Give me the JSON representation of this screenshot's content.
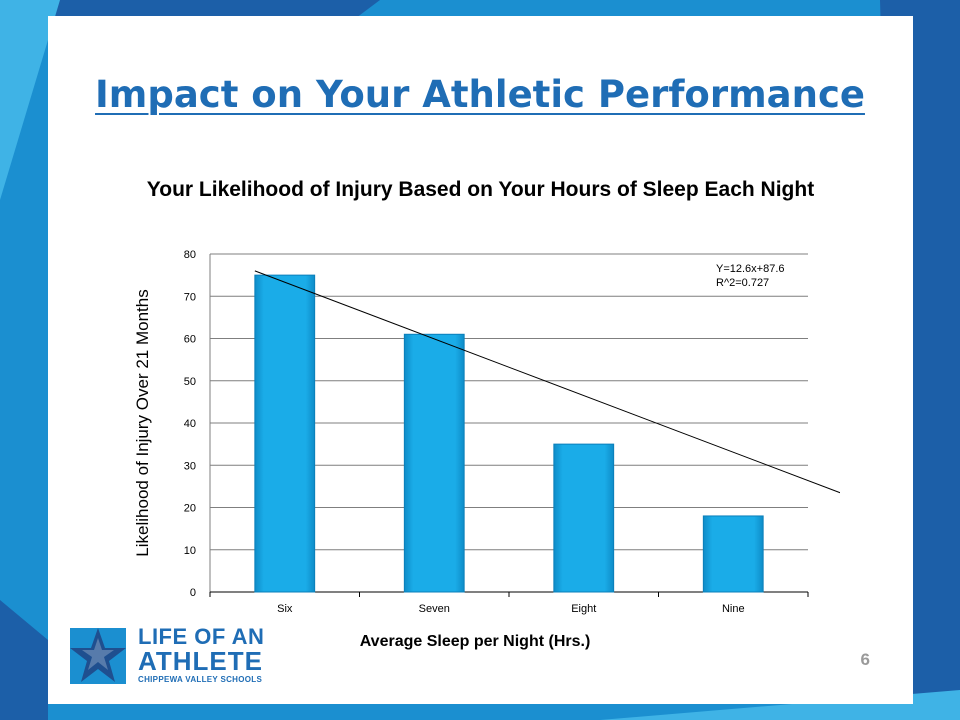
{
  "slide": {
    "title": "Impact on Your Athletic Performance",
    "subtitle": "Your Likelihood of Injury Based on Your Hours of Sleep Each Night",
    "page_number": "6",
    "logo": {
      "line1": "LIFE OF AN",
      "line2": "ATHLETE",
      "line3": "CHIPPEWA VALLEY SCHOOLS",
      "icon": "star-icon"
    }
  },
  "colors": {
    "background": "#1b8fd0",
    "background_dark": "#1c5fa8",
    "background_light": "#3fb3e6",
    "bar": "#1aace8",
    "title": "#1f6db5"
  },
  "chart_data": {
    "type": "bar",
    "categories": [
      "Six",
      "Seven",
      "Eight",
      "Nine"
    ],
    "values": [
      75,
      61,
      35,
      18
    ],
    "xlabel": "Average Sleep per Night (Hrs.)",
    "ylabel": "Likelihood of Injury  Over 21 Months",
    "ylim": [
      0,
      80
    ],
    "yticks": [
      0,
      10,
      20,
      30,
      40,
      50,
      60,
      70,
      80
    ],
    "grid": true,
    "trendline": {
      "start": [
        0.3,
        76
      ],
      "end": [
        4.55,
        19
      ],
      "equation": "Y=12.6x+87.6",
      "r_squared": "R^2=0.727"
    }
  }
}
